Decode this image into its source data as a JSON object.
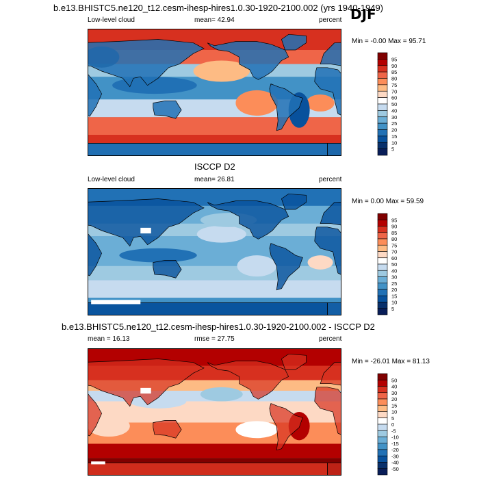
{
  "season": "DJF",
  "title": "b.e13.BHISTC5.ne120_t12.cesm-ihesp-hires1.0.30-1920-2100.002 (yrs 1940-1949)",
  "chart_data": [
    {
      "type": "heatmap",
      "title": "b.e13.BHISTC5.ne120_t12.cesm-ihesp-hires1.0.30-1920-2100.002 (yrs 1940-1949)",
      "left_label": "Low-level cloud",
      "center_label": "mean=  42.94",
      "right_label": "percent",
      "stats": "Min =  -0.00 Max =  95.71",
      "mean": 42.94,
      "min": -0.0,
      "max": 95.71,
      "colorbar_levels": [
        "95",
        "90",
        "85",
        "80",
        "75",
        "70",
        "60",
        "50",
        "40",
        "30",
        "25",
        "20",
        "15",
        "10",
        "5"
      ],
      "colors": [
        "#7f0000",
        "#b30000",
        "#d7301f",
        "#ef6548",
        "#fc8d59",
        "#fdbb84",
        "#fdd9c4",
        "#ffffff",
        "#c6dbef",
        "#9ecae1",
        "#6baed6",
        "#4292c6",
        "#2171b5",
        "#08519c",
        "#08306b",
        "#081d58"
      ]
    },
    {
      "type": "heatmap",
      "title": "ISCCP D2",
      "left_label": "Low-level cloud",
      "center_label": "mean=  26.81",
      "right_label": "percent",
      "stats": "Min =   0.00 Max =  59.59",
      "mean": 26.81,
      "min": 0.0,
      "max": 59.59,
      "colorbar_levels": [
        "95",
        "90",
        "85",
        "80",
        "75",
        "70",
        "60",
        "50",
        "40",
        "30",
        "25",
        "20",
        "15",
        "10",
        "5"
      ],
      "colors": [
        "#7f0000",
        "#b30000",
        "#d7301f",
        "#ef6548",
        "#fc8d59",
        "#fdbb84",
        "#fdd9c4",
        "#ffffff",
        "#c6dbef",
        "#9ecae1",
        "#6baed6",
        "#4292c6",
        "#2171b5",
        "#08519c",
        "#08306b",
        "#081d58"
      ]
    },
    {
      "type": "heatmap",
      "title": "b.e13.BHISTC5.ne120_t12.cesm-ihesp-hires1.0.30-1920-2100.002 - ISCCP D2",
      "left_label": "mean =  16.13",
      "center_label": "rmse =  27.75",
      "right_label": "percent",
      "stats": "Min = -26.01 Max =  81.13",
      "mean": 16.13,
      "rmse": 27.75,
      "min": -26.01,
      "max": 81.13,
      "colorbar_levels": [
        "50",
        "40",
        "30",
        "20",
        "15",
        "10",
        "5",
        "0",
        "-5",
        "-10",
        "-15",
        "-20",
        "-30",
        "-40",
        "-50"
      ],
      "colors": [
        "#7f0000",
        "#b30000",
        "#d7301f",
        "#ef6548",
        "#fc8d59",
        "#fdbb84",
        "#fdd9c4",
        "#ffffff",
        "#c6dbef",
        "#9ecae1",
        "#6baed6",
        "#4292c6",
        "#2171b5",
        "#08519c",
        "#08306b",
        "#081d58"
      ]
    }
  ]
}
